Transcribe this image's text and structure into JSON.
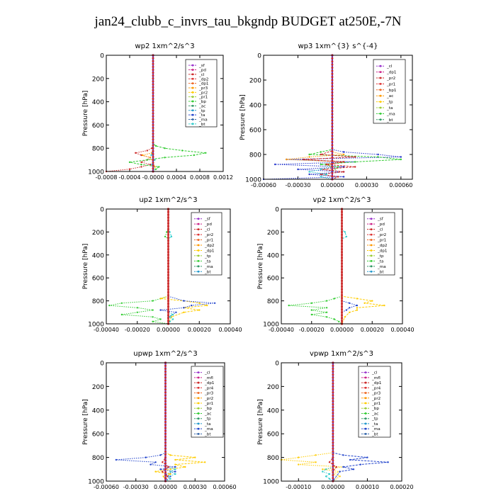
{
  "title": "jan24_clubb_c_invrs_tau_bkgndp  BUDGET at250E,-7N",
  "chart_data": [
    {
      "type": "line",
      "title": "wp2  1xm^2/s^3",
      "ylabel": "Pressure [hPa]",
      "ylim": [
        1000,
        0
      ],
      "xlim": [
        -0.0008,
        0.0012
      ],
      "xticks": [
        -0.0008,
        -0.0004,
        0.0,
        0.0004,
        0.0008,
        0.0012
      ],
      "xtick_labels": [
        "-0.0008",
        "-0.0004",
        "-0.0000",
        "0.0004",
        "0.0008",
        "0.0012"
      ],
      "yticks": [
        0,
        200,
        400,
        600,
        800,
        1000
      ],
      "legend": [
        "_sf",
        "_pd",
        "_cl",
        "_dp2",
        "_dp1",
        "_pr3",
        "_pr2",
        "_pr1",
        "_bp",
        "_ac",
        "_tp",
        "_ta",
        "_ma",
        "_bt"
      ],
      "series": [
        {
          "name": "_dp1",
          "color": "#cc2a2a",
          "p": [
            0,
            780,
            800,
            820,
            840,
            860,
            880,
            900,
            920,
            940,
            960,
            980,
            1000
          ],
          "values": [
            0,
            0,
            -2e-05,
            -0.0001,
            -0.0003,
            -0.0002,
            -5e-05,
            -0.0001,
            -0.0002,
            -5e-05,
            -0.0002,
            -0.0004,
            -0.0008
          ]
        },
        {
          "name": "_pr1",
          "color": "#33cc33",
          "p": [
            0,
            760,
            780,
            800,
            820,
            840,
            860,
            880,
            900,
            920,
            940,
            960,
            980,
            1000
          ],
          "values": [
            0,
            0,
            5e-05,
            0.0002,
            0.0005,
            0.0009,
            0.0007,
            0.0002,
            -0.0001,
            -0.0004,
            -0.0002,
            0.0001,
            5e-05,
            0
          ]
        },
        {
          "name": "_pr3",
          "color": "#ff9900",
          "p": [
            0,
            800,
            840,
            860,
            880,
            920,
            960,
            1000
          ],
          "values": [
            0,
            0,
            -2e-05,
            -0.00018,
            -5e-05,
            0,
            3e-05,
            0
          ]
        },
        {
          "name": "_bt",
          "color": "#33cccc",
          "p": [
            0,
            820,
            860,
            900,
            940,
            980,
            1000
          ],
          "values": [
            0,
            0,
            -3e-05,
            3e-05,
            -2e-05,
            1e-05,
            0
          ]
        },
        {
          "name": "_cl",
          "color": "#6633cc",
          "p": [
            0,
            1000
          ],
          "values": [
            0,
            0
          ]
        }
      ]
    },
    {
      "type": "line",
      "title": "wp3  1xm^{3} s^{-4}",
      "ylabel": "Pressure [hPa]",
      "ylim": [
        1000,
        0
      ],
      "xlim": [
        -0.0006,
        0.0007
      ],
      "xticks": [
        -0.0006,
        -0.0003,
        0.0,
        0.0003,
        0.0006
      ],
      "xtick_labels": [
        "-0.00060",
        "-0.00030",
        "0.00000",
        "0.00030",
        "0.00060"
      ],
      "yticks": [
        0,
        200,
        400,
        600,
        800,
        1000
      ],
      "legend": [
        "_cl",
        "_dp1",
        "_pr2",
        "_pr1",
        "_bp1",
        "_ac",
        "_tp",
        "_ta",
        "_ma",
        "_bt"
      ],
      "series": [
        {
          "name": "_ta",
          "color": "#2233cc",
          "p": [
            0,
            760,
            780,
            800,
            820,
            840,
            860,
            880,
            900,
            920,
            940,
            960,
            980,
            1000
          ],
          "values": [
            0,
            0,
            0.0001,
            0.0004,
            0.0006,
            -0.0004,
            0.0002,
            -0.0005,
            0.0001,
            -0.0003,
            0.0001,
            -0.0002,
            0.0001,
            -0.0006
          ]
        },
        {
          "name": "_pr1",
          "color": "#33cc33",
          "p": [
            0,
            760,
            780,
            800,
            820,
            840,
            860,
            880,
            900,
            940,
            1000
          ],
          "values": [
            0,
            0,
            -0.0001,
            -0.0002,
            0.0004,
            0.0006,
            0.0002,
            -0.0001,
            5e-05,
            0,
            0
          ]
        },
        {
          "name": "_pr2",
          "color": "#ff9900",
          "p": [
            0,
            780,
            800,
            820,
            840,
            860,
            880,
            900,
            1000
          ],
          "values": [
            0,
            0,
            0.0001,
            -0.0002,
            -0.0004,
            0.0001,
            -5e-05,
            0,
            0
          ]
        },
        {
          "name": "_dp1",
          "color": "#cc2a2a",
          "p": [
            0,
            770,
            800,
            820,
            840,
            860,
            880,
            900,
            920,
            940,
            960,
            980,
            1000
          ],
          "values": [
            0,
            0,
            -0.0001,
            0.0002,
            -0.00025,
            0.0001,
            -5e-05,
            0.0002,
            -0.0001,
            0.0001,
            -0.0001,
            5e-05,
            0
          ]
        },
        {
          "name": "_bt",
          "color": "#33cccc",
          "p": [
            0,
            900,
            920,
            940,
            960,
            980,
            1000
          ],
          "values": [
            0,
            0,
            -0.0001,
            -0.0002,
            -5e-05,
            -0.0001,
            0
          ]
        },
        {
          "name": "_cl",
          "color": "#6633cc",
          "p": [
            0,
            1000
          ],
          "values": [
            0,
            0
          ]
        }
      ]
    },
    {
      "type": "line",
      "title": "up2  1xm^2/s^3",
      "ylabel": "Pressure [hPa]",
      "ylim": [
        1000,
        0
      ],
      "xlim": [
        -0.0004,
        0.0004
      ],
      "xticks": [
        -0.0004,
        -0.0002,
        0.0,
        0.0002,
        0.0004
      ],
      "xtick_labels": [
        "-0.00040",
        "-0.00020",
        "0.00000",
        "0.00020",
        "0.00040"
      ],
      "yticks": [
        0,
        200,
        400,
        600,
        800,
        1000
      ],
      "legend": [
        "_sf",
        "_pd",
        "_cl",
        "_pr2",
        "_pr1",
        "_dp2",
        "_dp1",
        "_tp",
        "_ta",
        "_ma",
        "_bt"
      ],
      "series": [
        {
          "name": "_dp1",
          "color": "#33cc33",
          "p": [
            0,
            180,
            200,
            240,
            260,
            760,
            780,
            800,
            820,
            840,
            860,
            880,
            900,
            920,
            940,
            960,
            980,
            1000
          ],
          "values": [
            0,
            0,
            -1e-05,
            -2e-05,
            0,
            0,
            -5e-05,
            -0.0001,
            -0.0003,
            -0.00038,
            -0.0002,
            -0.0001,
            -0.0002,
            -0.0003,
            -0.0001,
            -5e-05,
            -0.0001,
            0
          ]
        },
        {
          "name": "_pr1",
          "color": "#ffcc00",
          "p": [
            0,
            760,
            780,
            800,
            820,
            840,
            860,
            880,
            900,
            940,
            1000
          ],
          "values": [
            0,
            0,
            -5e-05,
            0.0001,
            0.0002,
            0.00025,
            0.0001,
            0.0002,
            0.0001,
            2e-05,
            0
          ]
        },
        {
          "name": "_ta",
          "color": "#2244cc",
          "p": [
            0,
            760,
            800,
            820,
            840,
            860,
            880,
            900,
            940,
            1000
          ],
          "values": [
            0,
            0,
            0.0001,
            0.0003,
            0.00015,
            0.0001,
            -5e-05,
            5e-05,
            0,
            0
          ]
        },
        {
          "name": "_bt",
          "color": "#33cccc",
          "p": [
            0,
            180,
            200,
            240,
            260,
            900,
            920,
            940,
            960,
            980,
            1000
          ],
          "values": [
            0,
            0,
            1e-05,
            2e-05,
            0,
            0,
            3e-05,
            1e-05,
            3e-05,
            1e-05,
            0
          ]
        },
        {
          "name": "_cl",
          "color": "#cc2a2a",
          "p": [
            0,
            1000
          ],
          "values": [
            0,
            0
          ]
        }
      ]
    },
    {
      "type": "line",
      "title": "vp2  1xm^2/s^3",
      "ylabel": "Pressure [hPa]",
      "ylim": [
        1000,
        0
      ],
      "xlim": [
        -0.0004,
        0.0004
      ],
      "xticks": [
        -0.0004,
        -0.0002,
        0.0,
        0.0002,
        0.0004
      ],
      "xtick_labels": [
        "-0.00040",
        "-0.00020",
        "0.00000",
        "0.00020",
        "0.00040"
      ],
      "yticks": [
        0,
        200,
        400,
        600,
        800,
        1000
      ],
      "legend": [
        "_sf",
        "_pd",
        "_cl",
        "_pr2",
        "_pr1",
        "_dp2",
        "_dp1",
        "_tp",
        "_ta",
        "_ma",
        "_bt"
      ],
      "series": [
        {
          "name": "_dp1",
          "color": "#33cc33",
          "p": [
            0,
            760,
            780,
            800,
            820,
            840,
            860,
            880,
            900,
            920,
            940,
            960,
            980,
            1000
          ],
          "values": [
            0,
            0,
            -5e-05,
            -0.0001,
            -0.0002,
            -0.00035,
            -0.0001,
            -0.0002,
            -0.0001,
            -0.0002,
            -0.0001,
            -5e-05,
            -2e-05,
            0
          ]
        },
        {
          "name": "_pr1",
          "color": "#ffcc00",
          "p": [
            0,
            760,
            780,
            800,
            820,
            840,
            860,
            880,
            900,
            940,
            1000
          ],
          "values": [
            0,
            0,
            0.0001,
            0.0002,
            0.00015,
            0.00028,
            0.0001,
            0.0001,
            5e-05,
            2e-05,
            0
          ]
        },
        {
          "name": "_ta",
          "color": "#2244cc",
          "p": [
            0,
            800,
            820,
            840,
            860,
            880,
            900,
            1000
          ],
          "values": [
            0,
            0,
            5e-05,
            0.0001,
            5e-05,
            3e-05,
            0,
            0
          ]
        },
        {
          "name": "_bt",
          "color": "#33cccc",
          "p": [
            0,
            180,
            200,
            240,
            260,
            1000
          ],
          "values": [
            0,
            0,
            2e-05,
            3e-05,
            0,
            0
          ]
        },
        {
          "name": "_cl",
          "color": "#cc2a2a",
          "p": [
            0,
            1000
          ],
          "values": [
            0,
            0
          ]
        }
      ]
    },
    {
      "type": "line",
      "title": "upwp  1xm^2/s^3",
      "ylabel": "Pressure [hPa]",
      "ylim": [
        1000,
        0
      ],
      "xlim": [
        -0.0006,
        0.0006
      ],
      "xticks": [
        -0.0006,
        -0.0003,
        0.0,
        0.0003,
        0.0006
      ],
      "xtick_labels": [
        "-0.00060",
        "-0.00030",
        "0.00000",
        "0.00030",
        "0.00060"
      ],
      "yticks": [
        0,
        200,
        400,
        600,
        800,
        1000
      ],
      "legend": [
        "_cl",
        "_mfl",
        "_dp1",
        "_pr4",
        "_pr3",
        "_pr2",
        "_pr1",
        "_bp",
        "_ac",
        "_tp",
        "_ta",
        "_ma",
        "_bt"
      ],
      "series": [
        {
          "name": "_ta",
          "color": "#2244cc",
          "p": [
            0,
            760,
            780,
            800,
            820,
            840,
            860,
            880,
            900,
            920,
            940,
            960,
            1000
          ],
          "values": [
            0,
            0,
            -5e-05,
            -0.0002,
            -0.0005,
            -0.0001,
            -0.00015,
            0.0001,
            -5e-05,
            0.0001,
            0,
            5e-05,
            0
          ]
        },
        {
          "name": "_pr1",
          "color": "#ffcc00",
          "p": [
            0,
            760,
            780,
            800,
            820,
            840,
            860,
            880,
            900,
            920,
            940,
            960,
            1000
          ],
          "values": [
            0,
            0,
            5e-05,
            0.0003,
            0.0001,
            0.0004,
            0.0001,
            0.0002,
            5e-05,
            -0.0001,
            5e-05,
            -2e-05,
            0
          ]
        },
        {
          "name": "_bt",
          "color": "#33cccc",
          "p": [
            0,
            880,
            900,
            920,
            940,
            960,
            980,
            1000
          ],
          "values": [
            0,
            0,
            0.0001,
            5e-05,
            0.0001,
            3e-05,
            5e-05,
            0
          ]
        },
        {
          "name": "_dp1",
          "color": "#cc2a2a",
          "p": [
            0,
            800,
            840,
            880,
            920,
            960,
            1000
          ],
          "values": [
            0,
            0,
            -3e-05,
            3e-05,
            -3e-05,
            2e-05,
            0
          ]
        },
        {
          "name": "_cl",
          "color": "#6633cc",
          "p": [
            0,
            1000
          ],
          "values": [
            0,
            0
          ]
        }
      ]
    },
    {
      "type": "line",
      "title": "vpwp  1xm^2/s^3",
      "ylabel": "Pressure [hPa]",
      "ylim": [
        1000,
        0
      ],
      "xlim": [
        -0.00015,
        0.0002
      ],
      "xticks": [
        -0.0001,
        0.0,
        0.0001,
        0.0002
      ],
      "xtick_labels": [
        "-0.00010",
        "0.00000",
        "0.00010",
        "0.00020"
      ],
      "yticks": [
        0,
        200,
        400,
        600,
        800,
        1000
      ],
      "legend": [
        "_cl",
        "_mfl",
        "_dp1",
        "_pr4",
        "_pr3",
        "_pr2",
        "_pr1",
        "_bp",
        "_ac",
        "_tp",
        "_ta",
        "_ma",
        "_bt"
      ],
      "series": [
        {
          "name": "_pr1",
          "color": "#ffcc00",
          "p": [
            0,
            760,
            780,
            800,
            820,
            840,
            860,
            880,
            900,
            920,
            940,
            960,
            1000
          ],
          "values": [
            0,
            0,
            -5e-05,
            -0.0001,
            -0.00015,
            -5e-05,
            -0.0001,
            3e-05,
            -3e-05,
            2e-05,
            0,
            2e-05,
            0
          ]
        },
        {
          "name": "_ta",
          "color": "#2244cc",
          "p": [
            0,
            760,
            780,
            800,
            820,
            840,
            860,
            880,
            900,
            920,
            1000
          ],
          "values": [
            0,
            0,
            3e-05,
            0.0001,
            5e-05,
            0.00016,
            8e-05,
            3e-05,
            6e-05,
            2e-05,
            0
          ]
        },
        {
          "name": "_bt",
          "color": "#33cccc",
          "p": [
            0,
            880,
            900,
            920,
            940,
            960,
            980,
            1000
          ],
          "values": [
            0,
            0,
            -2e-05,
            -3e-05,
            -1e-05,
            -2e-05,
            -1e-05,
            0
          ]
        },
        {
          "name": "_dp1",
          "color": "#cc2a2a",
          "p": [
            0,
            800,
            840,
            880,
            920,
            1000
          ],
          "values": [
            0,
            0,
            -1e-05,
            1e-05,
            0,
            0
          ]
        },
        {
          "name": "_cl",
          "color": "#6633cc",
          "p": [
            0,
            1000
          ],
          "values": [
            0,
            0
          ]
        }
      ]
    }
  ]
}
